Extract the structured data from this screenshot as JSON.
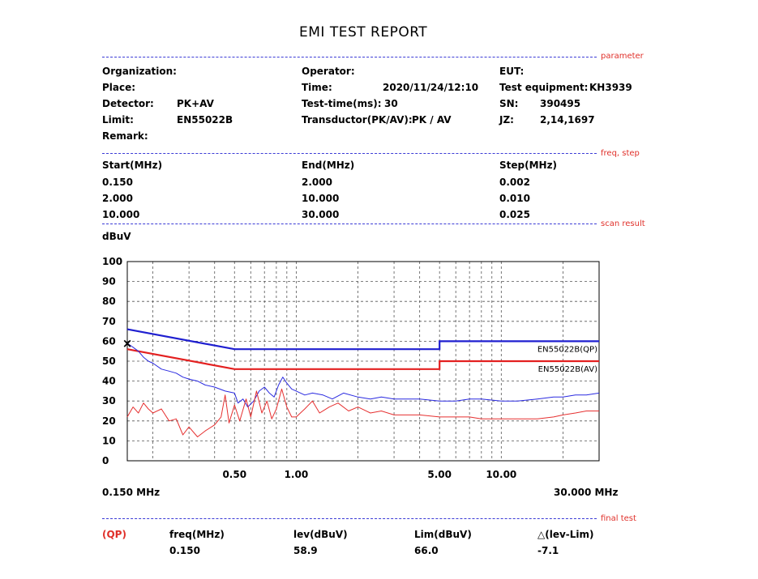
{
  "report": {
    "title": "EMI TEST REPORT",
    "sections": {
      "parameter": "parameter",
      "freq_step": "freq, step",
      "scan_result": "scan result",
      "final_test": "final test"
    },
    "parameters": {
      "organization_label": "Organization:",
      "organization_value": "",
      "place_label": "Place:",
      "place_value": "",
      "detector_label": "Detector:",
      "detector_value": "PK+AV",
      "limit_label": "Limit:",
      "limit_value": "EN55022B",
      "remark_label": "Remark:",
      "remark_value": "",
      "operator_label": "Operator:",
      "operator_value": "",
      "time_label": "Time:",
      "time_value": "2020/11/24/12:10",
      "testtime_label": "Test-time(ms):",
      "testtime_value": "30",
      "transducer_label": "Transductor(PK/AV):",
      "transducer_value": "PK  /  AV",
      "eut_label": "EUT:",
      "eut_value": "",
      "equipment_label": "Test equipment:",
      "equipment_value": "KH3939",
      "sn_label": "SN:",
      "sn_value": "390495",
      "jz_label": "JZ:",
      "jz_value": "2,14,1697"
    },
    "freq_step": {
      "headers": [
        "Start(MHz)",
        "End(MHz)",
        "Step(MHz)"
      ],
      "rows": [
        [
          "0.150",
          "2.000",
          "0.002"
        ],
        [
          "2.000",
          "10.000",
          "0.010"
        ],
        [
          "10.000",
          "30.000",
          "0.025"
        ]
      ]
    },
    "final_test": {
      "detector": "(QP)",
      "headers": [
        "freq(MHz)",
        "lev(dBuV)",
        "Lim(dBuV)",
        "△(lev-Lim)"
      ],
      "values": [
        "0.150",
        "58.9",
        "66.0",
        "-7.1"
      ]
    }
  },
  "chart_data": {
    "type": "line",
    "ylabel": "dBuV",
    "xscale": "log",
    "xlim": [
      0.15,
      30
    ],
    "ylim": [
      0,
      100
    ],
    "y_ticks": [
      0,
      10,
      20,
      30,
      40,
      50,
      60,
      70,
      80,
      90,
      100
    ],
    "x_tick_labels": [
      {
        "value": 0.5,
        "label": "0.50"
      },
      {
        "value": 1,
        "label": "1.00"
      },
      {
        "value": 5,
        "label": "5.00"
      },
      {
        "value": 10,
        "label": "10.00"
      }
    ],
    "x_start_label": "0.150 MHz",
    "x_end_label": "30.000 MHz",
    "grid": true,
    "limit_lines": [
      {
        "name": "EN55022B(QP)",
        "color": "#1f1fd0",
        "points": [
          [
            0.15,
            66
          ],
          [
            0.5,
            56
          ],
          [
            5,
            56
          ],
          [
            5,
            60
          ],
          [
            30,
            60
          ]
        ]
      },
      {
        "name": "EN55022B(AV)",
        "color": "#e32020",
        "points": [
          [
            0.15,
            56
          ],
          [
            0.5,
            46
          ],
          [
            5,
            46
          ],
          [
            5,
            50
          ],
          [
            30,
            50
          ]
        ]
      }
    ],
    "series": [
      {
        "color": "#2a2ae0",
        "points": [
          [
            0.15,
            59
          ],
          [
            0.16,
            57
          ],
          [
            0.17,
            55
          ],
          [
            0.18,
            52
          ],
          [
            0.19,
            50
          ],
          [
            0.2,
            49
          ],
          [
            0.22,
            46
          ],
          [
            0.24,
            45
          ],
          [
            0.26,
            44
          ],
          [
            0.28,
            42
          ],
          [
            0.3,
            41
          ],
          [
            0.33,
            40
          ],
          [
            0.36,
            38
          ],
          [
            0.4,
            37
          ],
          [
            0.45,
            35
          ],
          [
            0.5,
            34
          ],
          [
            0.52,
            29
          ],
          [
            0.55,
            31
          ],
          [
            0.58,
            27
          ],
          [
            0.62,
            30
          ],
          [
            0.66,
            35
          ],
          [
            0.7,
            37
          ],
          [
            0.74,
            34
          ],
          [
            0.78,
            32
          ],
          [
            0.82,
            38
          ],
          [
            0.86,
            42
          ],
          [
            0.9,
            39
          ],
          [
            0.95,
            36
          ],
          [
            1.0,
            35
          ],
          [
            1.1,
            33
          ],
          [
            1.2,
            34
          ],
          [
            1.35,
            33
          ],
          [
            1.5,
            31
          ],
          [
            1.7,
            34
          ],
          [
            2.0,
            32
          ],
          [
            2.3,
            31
          ],
          [
            2.6,
            32
          ],
          [
            3.0,
            31
          ],
          [
            3.5,
            31
          ],
          [
            4.0,
            31
          ],
          [
            5.0,
            30
          ],
          [
            6.0,
            30
          ],
          [
            7.0,
            31
          ],
          [
            8.0,
            31
          ],
          [
            10,
            30
          ],
          [
            12,
            30
          ],
          [
            15,
            31
          ],
          [
            18,
            32
          ],
          [
            20,
            32
          ],
          [
            23,
            33
          ],
          [
            26,
            33
          ],
          [
            30,
            34
          ]
        ]
      },
      {
        "color": "#e63030",
        "points": [
          [
            0.15,
            22
          ],
          [
            0.16,
            27
          ],
          [
            0.17,
            24
          ],
          [
            0.18,
            29
          ],
          [
            0.19,
            26
          ],
          [
            0.2,
            24
          ],
          [
            0.22,
            26
          ],
          [
            0.24,
            20
          ],
          [
            0.26,
            21
          ],
          [
            0.28,
            13
          ],
          [
            0.3,
            17
          ],
          [
            0.33,
            12
          ],
          [
            0.36,
            15
          ],
          [
            0.4,
            18
          ],
          [
            0.43,
            22
          ],
          [
            0.45,
            33
          ],
          [
            0.47,
            19
          ],
          [
            0.5,
            28
          ],
          [
            0.53,
            20
          ],
          [
            0.57,
            31
          ],
          [
            0.6,
            22
          ],
          [
            0.64,
            35
          ],
          [
            0.68,
            24
          ],
          [
            0.72,
            30
          ],
          [
            0.76,
            21
          ],
          [
            0.8,
            26
          ],
          [
            0.85,
            36
          ],
          [
            0.9,
            27
          ],
          [
            0.95,
            22
          ],
          [
            1.0,
            22
          ],
          [
            1.1,
            26
          ],
          [
            1.2,
            30
          ],
          [
            1.3,
            24
          ],
          [
            1.45,
            27
          ],
          [
            1.6,
            29
          ],
          [
            1.8,
            25
          ],
          [
            2.0,
            27
          ],
          [
            2.3,
            24
          ],
          [
            2.6,
            25
          ],
          [
            3.0,
            23
          ],
          [
            3.5,
            23
          ],
          [
            4.0,
            23
          ],
          [
            5.0,
            22
          ],
          [
            6.0,
            22
          ],
          [
            7.0,
            22
          ],
          [
            8.0,
            21
          ],
          [
            10,
            21
          ],
          [
            12,
            21
          ],
          [
            15,
            21
          ],
          [
            18,
            22
          ],
          [
            20,
            23
          ],
          [
            23,
            24
          ],
          [
            26,
            25
          ],
          [
            30,
            25
          ]
        ]
      }
    ],
    "marker": {
      "x": 0.15,
      "y": 58.9,
      "symbol": "×"
    }
  }
}
